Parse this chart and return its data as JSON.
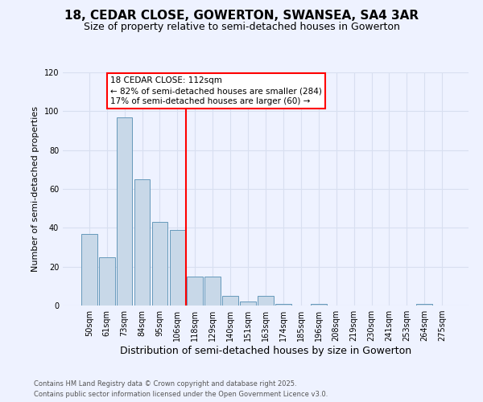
{
  "title_line1": "18, CEDAR CLOSE, GOWERTON, SWANSEA, SA4 3AR",
  "title_line2": "Size of property relative to semi-detached houses in Gowerton",
  "xlabel": "Distribution of semi-detached houses by size in Gowerton",
  "ylabel": "Number of semi-detached properties",
  "footer_line1": "Contains HM Land Registry data © Crown copyright and database right 2025.",
  "footer_line2": "Contains public sector information licensed under the Open Government Licence v3.0.",
  "categories": [
    "50sqm",
    "61sqm",
    "73sqm",
    "84sqm",
    "95sqm",
    "106sqm",
    "118sqm",
    "129sqm",
    "140sqm",
    "151sqm",
    "163sqm",
    "174sqm",
    "185sqm",
    "196sqm",
    "208sqm",
    "219sqm",
    "230sqm",
    "241sqm",
    "253sqm",
    "264sqm",
    "275sqm"
  ],
  "values": [
    37,
    25,
    97,
    65,
    43,
    39,
    15,
    15,
    5,
    2,
    5,
    1,
    0,
    1,
    0,
    0,
    0,
    0,
    0,
    1,
    0
  ],
  "bar_color": "#c8d8e8",
  "bar_edge_color": "#6699bb",
  "vline_x": 6.0,
  "vline_color": "red",
  "annotation_text": "18 CEDAR CLOSE: 112sqm\n← 82% of semi-detached houses are smaller (284)\n17% of semi-detached houses are larger (60) →",
  "annotation_box_color": "white",
  "annotation_box_edge_color": "red",
  "ylim": [
    0,
    120
  ],
  "yticks": [
    0,
    20,
    40,
    60,
    80,
    100,
    120
  ],
  "grid_color": "#d8dff0",
  "background_color": "#eef2ff",
  "title_fontsize": 11,
  "subtitle_fontsize": 9,
  "xlabel_fontsize": 9,
  "ylabel_fontsize": 8,
  "tick_fontsize": 7,
  "footer_fontsize": 6,
  "annot_fontsize": 7.5
}
